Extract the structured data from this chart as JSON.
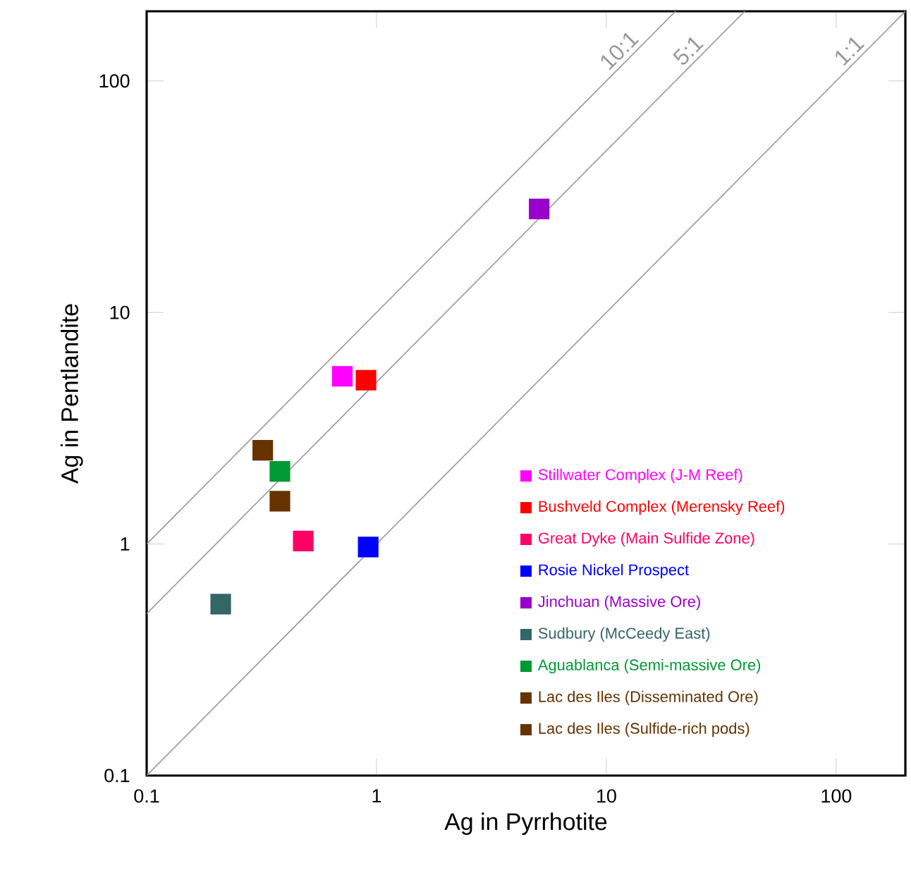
{
  "chart_data": {
    "type": "scatter",
    "xlabel": "Ag in Pyrrhotite",
    "ylabel": "Ag in Pentlandite",
    "log": "xy",
    "xlim": [
      0.1,
      200
    ],
    "ylim": [
      0.1,
      200
    ],
    "xticks": [
      0.1,
      1,
      10,
      100
    ],
    "yticks": [
      0.1,
      1,
      10,
      100
    ],
    "marker": "square",
    "grid": false,
    "legend": "bottom right",
    "series": [
      {
        "name": "10:1",
        "type": "line",
        "marker": "none",
        "color": "#999999",
        "x": [
          0.1,
          20
        ],
        "values": [
          1,
          200
        ]
      },
      {
        "name": "5:1",
        "type": "line",
        "marker": "none",
        "color": "#999999",
        "x": [
          0.1,
          40
        ],
        "values": [
          0.5,
          200
        ]
      },
      {
        "name": "1:1",
        "type": "line",
        "marker": "none",
        "color": "#999999",
        "x": [
          0.1,
          200
        ],
        "values": [
          0.1,
          200
        ]
      },
      {
        "name": "Stillwater Complex (J-M Reef)",
        "color": "#ff00ff",
        "x": [
          0.71
        ],
        "values": [
          5.3
        ]
      },
      {
        "name": "Bushveld Complex (Merensky Reef)",
        "color": "#ff0000",
        "x": [
          0.9
        ],
        "values": [
          5.1
        ]
      },
      {
        "name": "Great Dyke (Main Sulfide Zone)",
        "color": "#ff0066",
        "x": [
          0.48
        ],
        "values": [
          1.03
        ]
      },
      {
        "name": "Rosie Nickel Prospect",
        "color": "#0000ff",
        "x": [
          0.92
        ],
        "values": [
          0.97
        ]
      },
      {
        "name": "Jinchuan (Massive Ore)",
        "color": "#9900cc",
        "x": [
          5.1
        ],
        "values": [
          28
        ]
      },
      {
        "name": "Sudbury (McCeedy East)",
        "color": "#336666",
        "x": [
          0.21
        ],
        "values": [
          0.55
        ]
      },
      {
        "name": "Aguablanca (Semi-massive Ore)",
        "color": "#009933",
        "x": [
          0.38
        ],
        "values": [
          2.06
        ]
      },
      {
        "name": "Lac des Iles (Disseminated Ore)",
        "color": "#663300",
        "x": [
          0.38
        ],
        "values": [
          1.53
        ]
      },
      {
        "name": "Lac des Iles (Sulfide-rich pods)",
        "color": "#663300",
        "x": [
          0.32
        ],
        "values": [
          2.54
        ]
      }
    ]
  }
}
